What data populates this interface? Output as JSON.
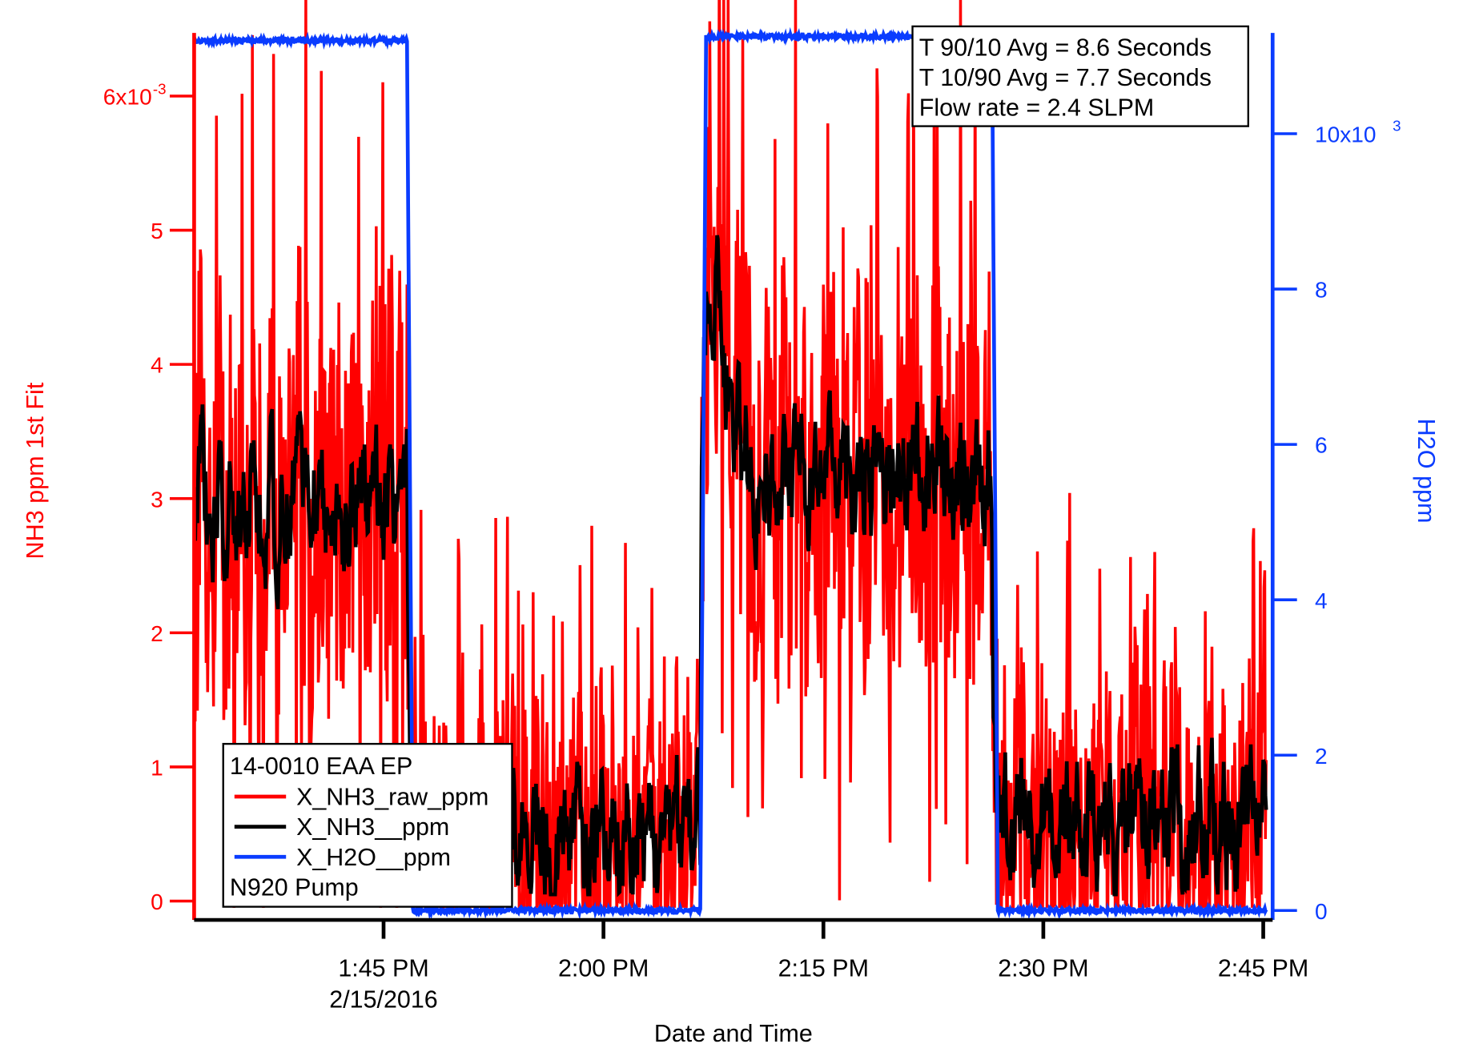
{
  "chart_data": {
    "type": "line",
    "xlabel": "Date and Time",
    "ylabel_left": "NH3 ppm 1st Fit",
    "ylabel_right": "H2O ppm",
    "x_ticks": [
      {
        "minute": 45,
        "label": "1:45 PM",
        "sublabel": "2/15/2016"
      },
      {
        "minute": 60,
        "label": "2:00 PM",
        "sublabel": ""
      },
      {
        "minute": 75,
        "label": "2:15 PM",
        "sublabel": ""
      },
      {
        "minute": 90,
        "label": "2:30 PM",
        "sublabel": ""
      },
      {
        "minute": 105,
        "label": "2:45 PM",
        "sublabel": ""
      }
    ],
    "x_range_minutes_after_1pm": [
      32.1,
      105.2
    ],
    "left_axis": {
      "range": [
        -0.00014,
        0.0065
      ],
      "ticks": [
        {
          "value": 0,
          "label": "0"
        },
        {
          "value": 0.001,
          "label": "1"
        },
        {
          "value": 0.002,
          "label": "2"
        },
        {
          "value": 0.003,
          "label": "3"
        },
        {
          "value": 0.004,
          "label": "4"
        },
        {
          "value": 0.005,
          "label": "5"
        },
        {
          "value": 0.006,
          "label": "6x10",
          "exp": "-3"
        }
      ]
    },
    "right_axis": {
      "range": [
        -120,
        11400
      ],
      "ticks": [
        {
          "value": 0,
          "label": "0"
        },
        {
          "value": 2000,
          "label": "2"
        },
        {
          "value": 4000,
          "label": "4"
        },
        {
          "value": 6000,
          "label": "6"
        },
        {
          "value": 8000,
          "label": "8"
        },
        {
          "value": 10000,
          "label": "10x10",
          "exp": "3"
        }
      ]
    },
    "segments": [
      {
        "start": 32.1,
        "end": 46.6,
        "nh3_smoothed_mean": 0.003,
        "nh3_raw_spread": 0.0015,
        "h2o": 11200
      },
      {
        "start": 46.6,
        "end": 66.6,
        "nh3_smoothed_mean": 0.0005,
        "nh3_raw_spread": 0.001,
        "h2o": 0
      },
      {
        "start": 66.6,
        "end": 86.5,
        "nh3_smoothed_mean": 0.0032,
        "nh3_raw_spread": 0.0015,
        "h2o": 11250
      },
      {
        "start": 86.5,
        "end": 105.2,
        "nh3_smoothed_mean": 0.0006,
        "nh3_raw_spread": 0.001,
        "h2o": 0
      }
    ],
    "series": [
      {
        "name": "X_NH3_raw_ppm",
        "color": "#ff0000",
        "axis": "left"
      },
      {
        "name": "X_NH3__ppm",
        "color": "#000000",
        "axis": "left"
      },
      {
        "name": "X_H2O__ppm",
        "color": "#0a3cff",
        "axis": "right"
      }
    ],
    "legend": {
      "title": "14-0010 EAA EP",
      "footer": "N920 Pump",
      "placement": "bottom-left"
    },
    "annotation": {
      "placement": "top-right",
      "lines": [
        "T 90/10 Avg = 8.6 Seconds",
        "T 10/90 Avg = 7.7 Seconds",
        "Flow rate = 2.4 SLPM"
      ]
    },
    "colors": {
      "left_axis": "#ff0000",
      "right_axis": "#0a3cff"
    }
  }
}
